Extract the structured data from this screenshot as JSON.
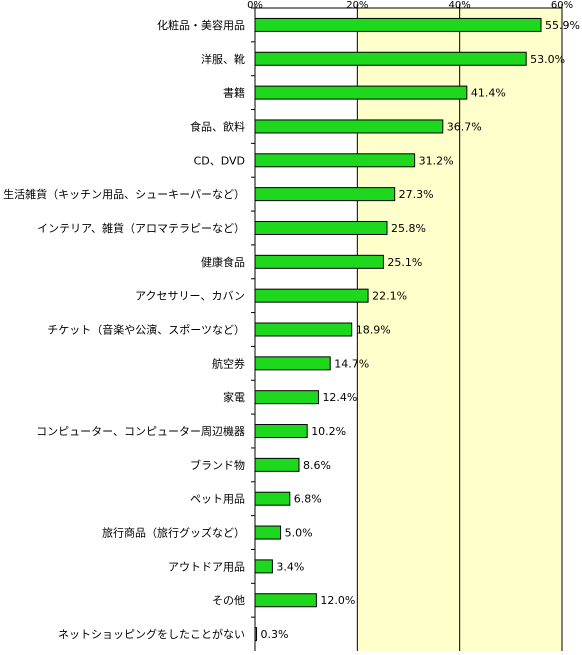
{
  "chart_data": {
    "type": "bar",
    "orientation": "horizontal",
    "categories": [
      "化粧品・美容用品",
      "洋服、靴",
      "書籍",
      "食品、飲料",
      "CD、DVD",
      "生活雑貨（キッチン用品、シューキーパーなど）",
      "インテリア、雑貨（アロマテラピーなど）",
      "健康食品",
      "アクセサリー、カバン",
      "チケット（音楽や公演、スポーツなど）",
      "航空券",
      "家電",
      "コンピューター、コンピューター周辺機器",
      "ブランド物",
      "ペット用品",
      "旅行商品（旅行グッズなど）",
      "アウトドア用品",
      "その他",
      "ネットショッピングをしたことがない"
    ],
    "values": [
      55.9,
      53.0,
      41.4,
      36.7,
      31.2,
      27.3,
      25.8,
      25.1,
      22.1,
      18.9,
      14.7,
      12.4,
      10.2,
      8.6,
      6.8,
      5.0,
      3.4,
      12.0,
      0.3
    ],
    "value_labels": [
      "55.9%",
      "53.0%",
      "41.4%",
      "36.7%",
      "31.2%",
      "27.3%",
      "25.8%",
      "25.1%",
      "22.1%",
      "18.9%",
      "14.7%",
      "12.4%",
      "10.2%",
      "8.6%",
      "6.8%",
      "5.0%",
      "3.4%",
      "12.0%",
      "0.3%"
    ],
    "x_ticks": [
      "0%",
      "20%",
      "40%",
      "60%"
    ],
    "xlim": [
      0,
      60
    ],
    "grid": true,
    "legend": false,
    "title": "",
    "xlabel": "",
    "ylabel": ""
  },
  "colors": {
    "bar_fill": "#1ed81e",
    "bar_stroke": "#000000",
    "plot_bg": "#ffffcc",
    "plot_bg_left": "#ffffff",
    "grid": "#000000",
    "text": "#000000"
  }
}
